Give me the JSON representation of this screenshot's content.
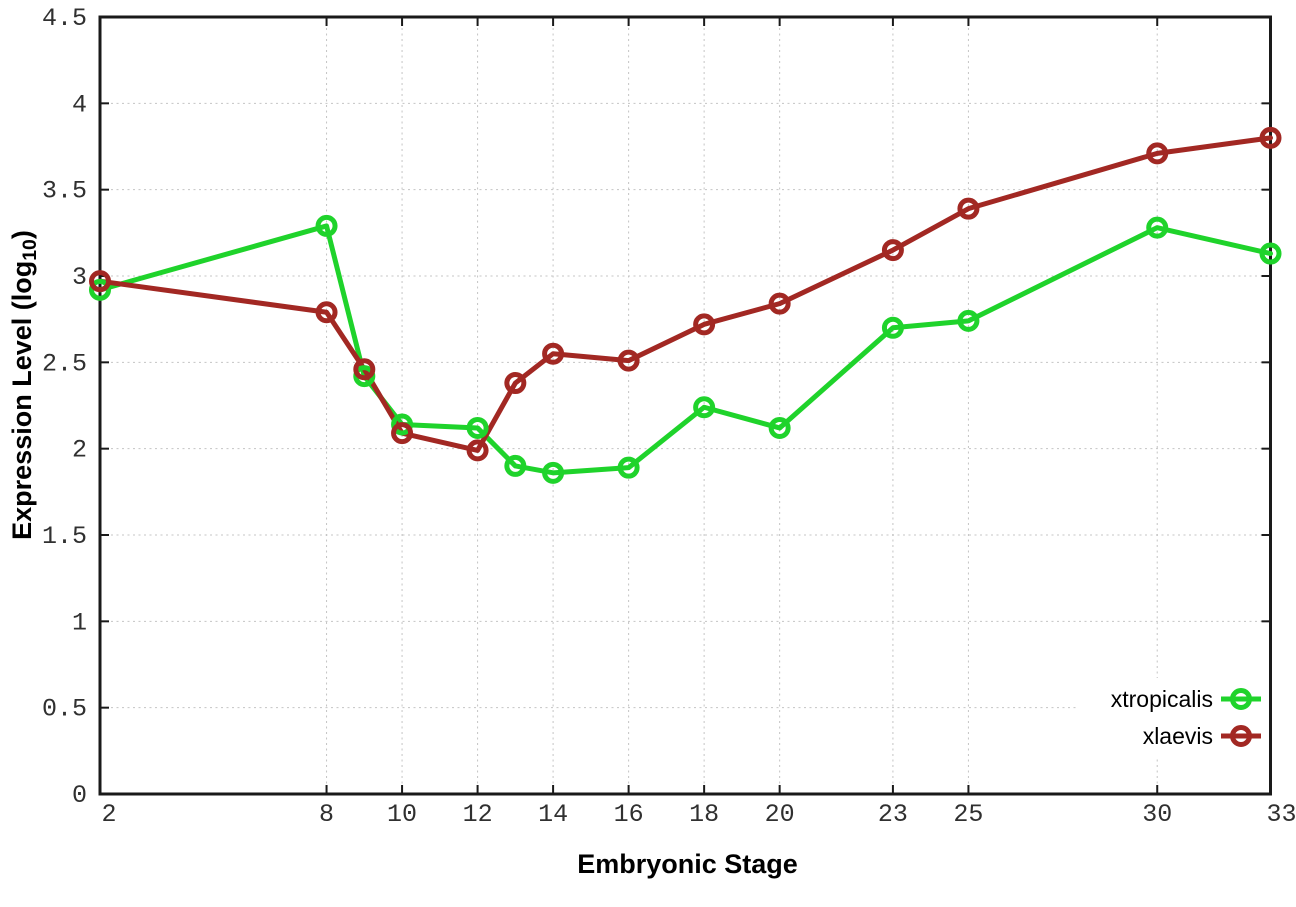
{
  "figure": {
    "background": "#ffffff",
    "xlabel": "Embryonic Stage",
    "ylabel_display": {
      "prefix": "Expression Level (log",
      "sub": "10",
      "suffix": ")"
    }
  },
  "chart_data": {
    "type": "line",
    "title": "",
    "xlabel": "Embryonic Stage",
    "ylabel": "Expression Level (log10)",
    "x": [
      2,
      8,
      9,
      10,
      12,
      13,
      14,
      16,
      18,
      20,
      23,
      25,
      30,
      33
    ],
    "series": [
      {
        "name": "xtropicalis",
        "color": "#1fd32b",
        "marker": "open-circle",
        "values": [
          2.92,
          3.29,
          2.42,
          2.14,
          2.12,
          1.9,
          1.86,
          1.89,
          2.24,
          2.12,
          2.7,
          2.74,
          3.28,
          3.13
        ]
      },
      {
        "name": "xlaevis",
        "color": "#a22823",
        "marker": "open-circle",
        "values": [
          2.97,
          2.79,
          2.46,
          2.09,
          1.99,
          2.38,
          2.55,
          2.51,
          2.72,
          2.84,
          3.15,
          3.39,
          3.71,
          3.8
        ]
      }
    ],
    "xlim": [
      2,
      33
    ],
    "ylim": [
      0,
      4.5
    ],
    "xticks": [
      2,
      8,
      10,
      12,
      14,
      16,
      18,
      20,
      23,
      25,
      30,
      33
    ],
    "yticks": [
      0,
      0.5,
      1,
      1.5,
      2,
      2.5,
      3,
      3.5,
      4,
      4.5
    ],
    "grid": true,
    "grid_style": "dotted",
    "legend_position": "bottom-right-inside",
    "colors": {
      "grid": "#c4c4c4",
      "border": "#1a1a1a",
      "tick_text": "#303030"
    }
  }
}
